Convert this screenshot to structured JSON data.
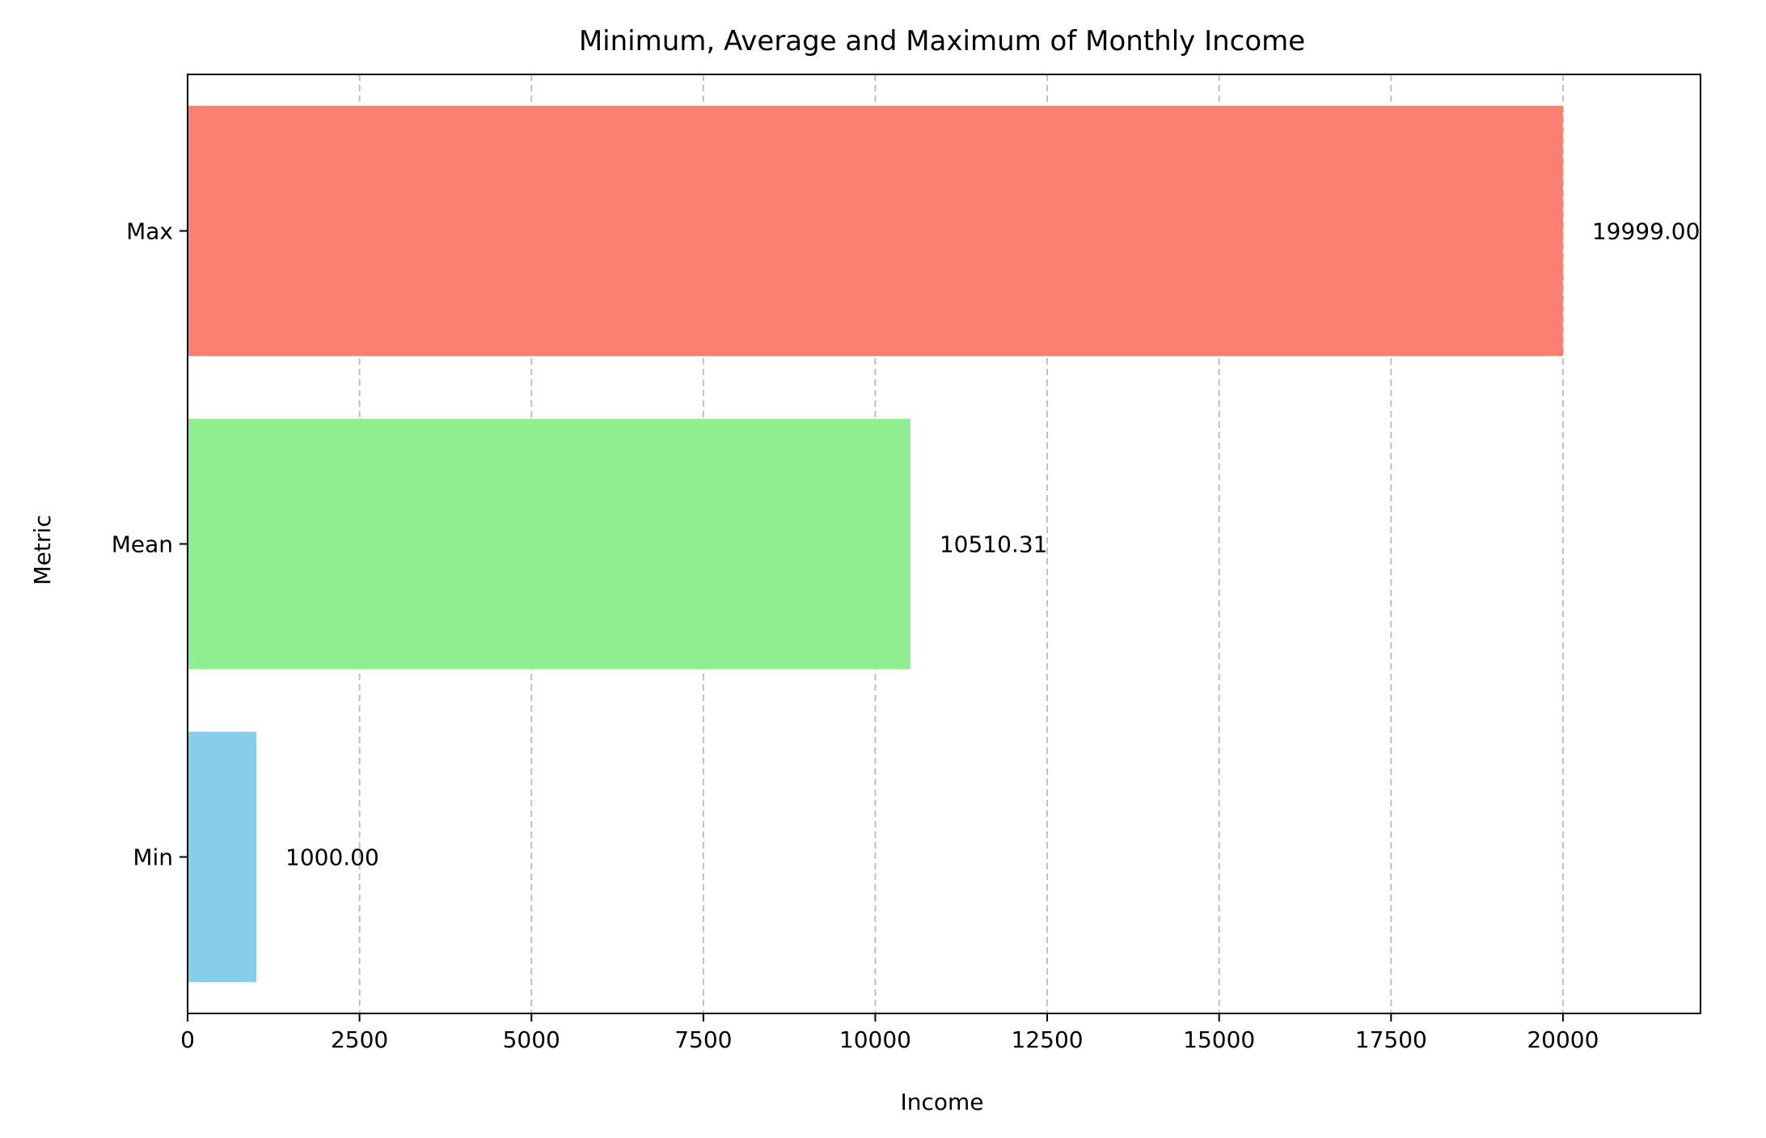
{
  "chart_data": {
    "type": "bar",
    "orientation": "horizontal",
    "title": "Minimum, Average and Maximum of Monthly Income",
    "xlabel": "Income",
    "ylabel": "Metric",
    "categories": [
      "Min",
      "Mean",
      "Max"
    ],
    "values": [
      1000.0,
      10510.31,
      19999.0
    ],
    "value_labels": [
      "1000.00",
      "10510.31",
      "19999.00"
    ],
    "colors": [
      "#87ceeb",
      "#90ee90",
      "#fa8072"
    ],
    "xlim": [
      0,
      22000
    ],
    "x_ticks": [
      0,
      2500,
      5000,
      7500,
      10000,
      12500,
      15000,
      17500,
      20000
    ],
    "x_tick_labels": [
      "0",
      "2500",
      "5000",
      "7500",
      "10000",
      "12500",
      "15000",
      "17500",
      "20000"
    ],
    "grid": {
      "x": true,
      "y": false,
      "style": "dashed",
      "color": "#c0c0c0"
    },
    "legend": false
  }
}
